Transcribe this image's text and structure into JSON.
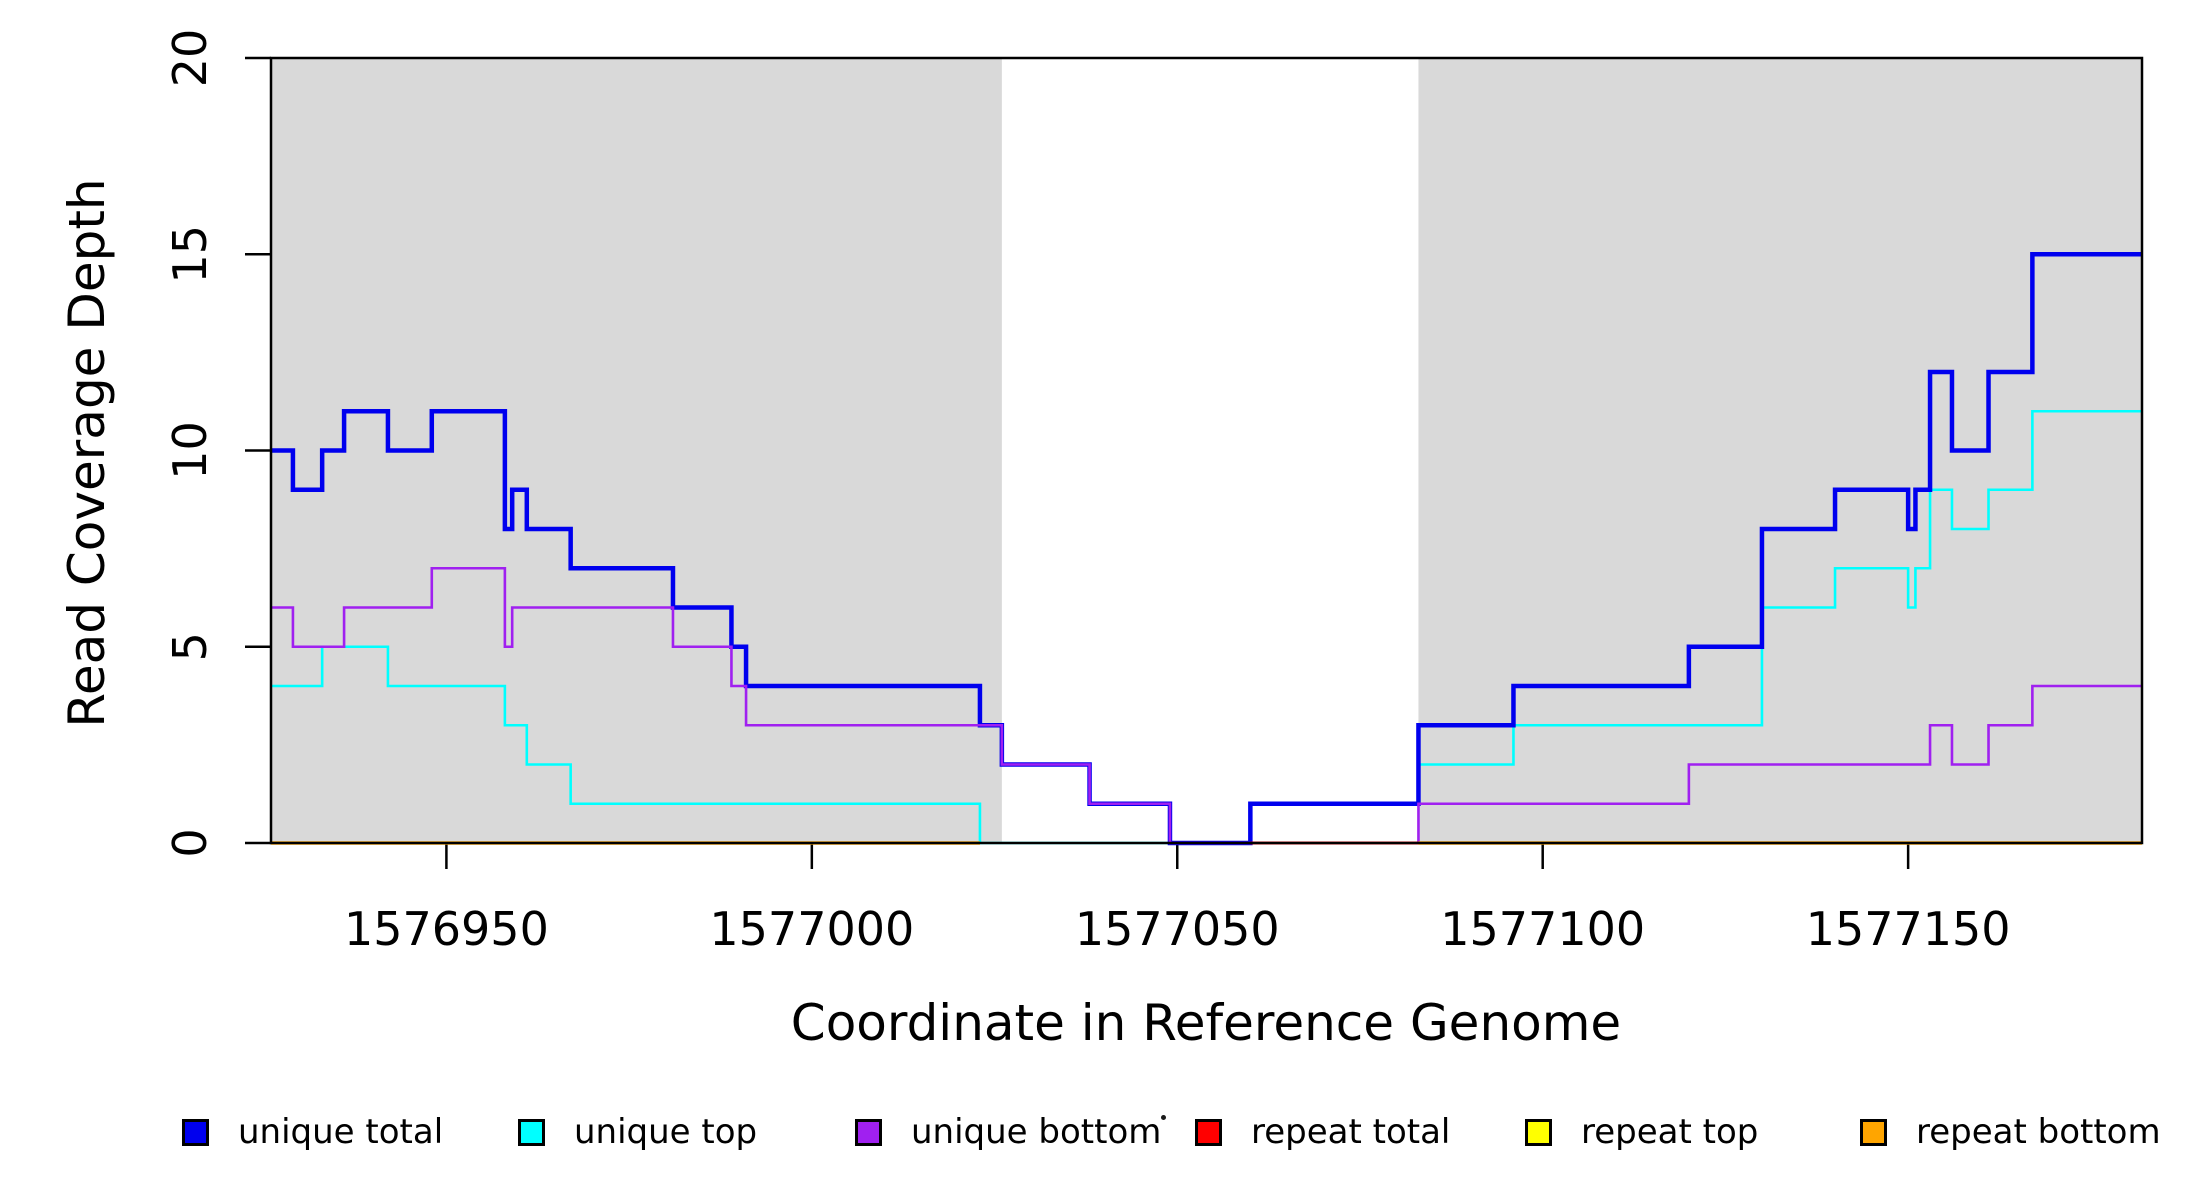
{
  "figure": {
    "background": "#FFFFFF",
    "axis_color": "#000000"
  },
  "chart_data": {
    "type": "line",
    "subtype": "step",
    "title": "",
    "xlabel": "Coordinate in Reference Genome",
    "ylabel": "Read Coverage Depth",
    "xlim": [
      1576926,
      1577182
    ],
    "ylim": [
      0,
      20
    ],
    "x_ticks": [
      1576950,
      1577000,
      1577050,
      1577100,
      1577150
    ],
    "y_ticks": [
      0,
      5,
      10,
      15,
      20
    ],
    "grid": false,
    "legend_position": "bottom",
    "shade_color": "#D9D9D9",
    "shaded_regions": [
      [
        1576926,
        1577026
      ],
      [
        1577083,
        1577182
      ]
    ],
    "series": [
      {
        "name": "unique total",
        "color": "#0000EE",
        "lwd": 4.5,
        "z": 2,
        "segments": [
          [
            1576926,
            1576929,
            10
          ],
          [
            1576929,
            1576933,
            9
          ],
          [
            1576933,
            1576936,
            10
          ],
          [
            1576936,
            1576942,
            11
          ],
          [
            1576942,
            1576948,
            10
          ],
          [
            1576948,
            1576958,
            11
          ],
          [
            1576958,
            1576959,
            8
          ],
          [
            1576959,
            1576961,
            9
          ],
          [
            1576961,
            1576967,
            8
          ],
          [
            1576967,
            1576981,
            7
          ],
          [
            1576981,
            1576989,
            6
          ],
          [
            1576989,
            1576991,
            5
          ],
          [
            1576991,
            1577023,
            4
          ],
          [
            1577023,
            1577026,
            3
          ],
          [
            1577026,
            1577038,
            2
          ],
          [
            1577038,
            1577049,
            1
          ],
          [
            1577049,
            1577060,
            0
          ],
          [
            1577060,
            1577083,
            1
          ],
          [
            1577083,
            1577096,
            3
          ],
          [
            1577096,
            1577120,
            4
          ],
          [
            1577120,
            1577130,
            5
          ],
          [
            1577130,
            1577140,
            8
          ],
          [
            1577140,
            1577150,
            9
          ],
          [
            1577150,
            1577151,
            8
          ],
          [
            1577151,
            1577153,
            9
          ],
          [
            1577153,
            1577156,
            12
          ],
          [
            1577156,
            1577161,
            10
          ],
          [
            1577161,
            1577167,
            12
          ],
          [
            1577167,
            1577182,
            15
          ]
        ]
      },
      {
        "name": "unique top",
        "color": "#00FFFF",
        "lwd": 2.6,
        "z": 1,
        "segments": [
          [
            1576926,
            1576933,
            4
          ],
          [
            1576933,
            1576942,
            5
          ],
          [
            1576942,
            1576958,
            4
          ],
          [
            1576958,
            1576961,
            3
          ],
          [
            1576961,
            1576967,
            2
          ],
          [
            1576967,
            1577023,
            1
          ],
          [
            1577023,
            1577060,
            0
          ],
          [
            1577060,
            1577083,
            1
          ],
          [
            1577083,
            1577096,
            2
          ],
          [
            1577096,
            1577130,
            3
          ],
          [
            1577130,
            1577140,
            6
          ],
          [
            1577140,
            1577150,
            7
          ],
          [
            1577150,
            1577151,
            6
          ],
          [
            1577151,
            1577153,
            7
          ],
          [
            1577153,
            1577156,
            9
          ],
          [
            1577156,
            1577161,
            8
          ],
          [
            1577161,
            1577167,
            9
          ],
          [
            1577167,
            1577182,
            11
          ]
        ]
      },
      {
        "name": "unique bottom",
        "color": "#A020F0",
        "lwd": 2.6,
        "z": 3,
        "segments": [
          [
            1576926,
            1576929,
            6
          ],
          [
            1576929,
            1576936,
            5
          ],
          [
            1576936,
            1576948,
            6
          ],
          [
            1576948,
            1576958,
            7
          ],
          [
            1576958,
            1576959,
            5
          ],
          [
            1576959,
            1576981,
            6
          ],
          [
            1576981,
            1576989,
            5
          ],
          [
            1576989,
            1576991,
            4
          ],
          [
            1576991,
            1577026,
            3
          ],
          [
            1577026,
            1577038,
            2
          ],
          [
            1577038,
            1577049,
            1
          ],
          [
            1577049,
            1577083,
            0
          ],
          [
            1577083,
            1577120,
            1
          ],
          [
            1577120,
            1577153,
            2
          ],
          [
            1577153,
            1577156,
            3
          ],
          [
            1577156,
            1577161,
            2
          ],
          [
            1577161,
            1577167,
            3
          ],
          [
            1577167,
            1577182,
            4
          ]
        ]
      },
      {
        "name": "repeat total",
        "color": "#FF0000",
        "lwd": 3,
        "z": 4,
        "segments": [
          [
            1576926,
            1577023,
            0
          ],
          [
            1577060,
            1577182,
            0
          ]
        ]
      },
      {
        "name": "repeat top",
        "color": "#FFFF00",
        "lwd": 3,
        "z": 5,
        "segments": [
          [
            1576926,
            1577023,
            0
          ],
          [
            1577083,
            1577182,
            0
          ]
        ]
      },
      {
        "name": "repeat bottom",
        "color": "#FFA500",
        "lwd": 3.5,
        "z": 6,
        "segments": [
          [
            1576926,
            1577023,
            0
          ],
          [
            1577083,
            1577182,
            0
          ]
        ]
      }
    ]
  }
}
